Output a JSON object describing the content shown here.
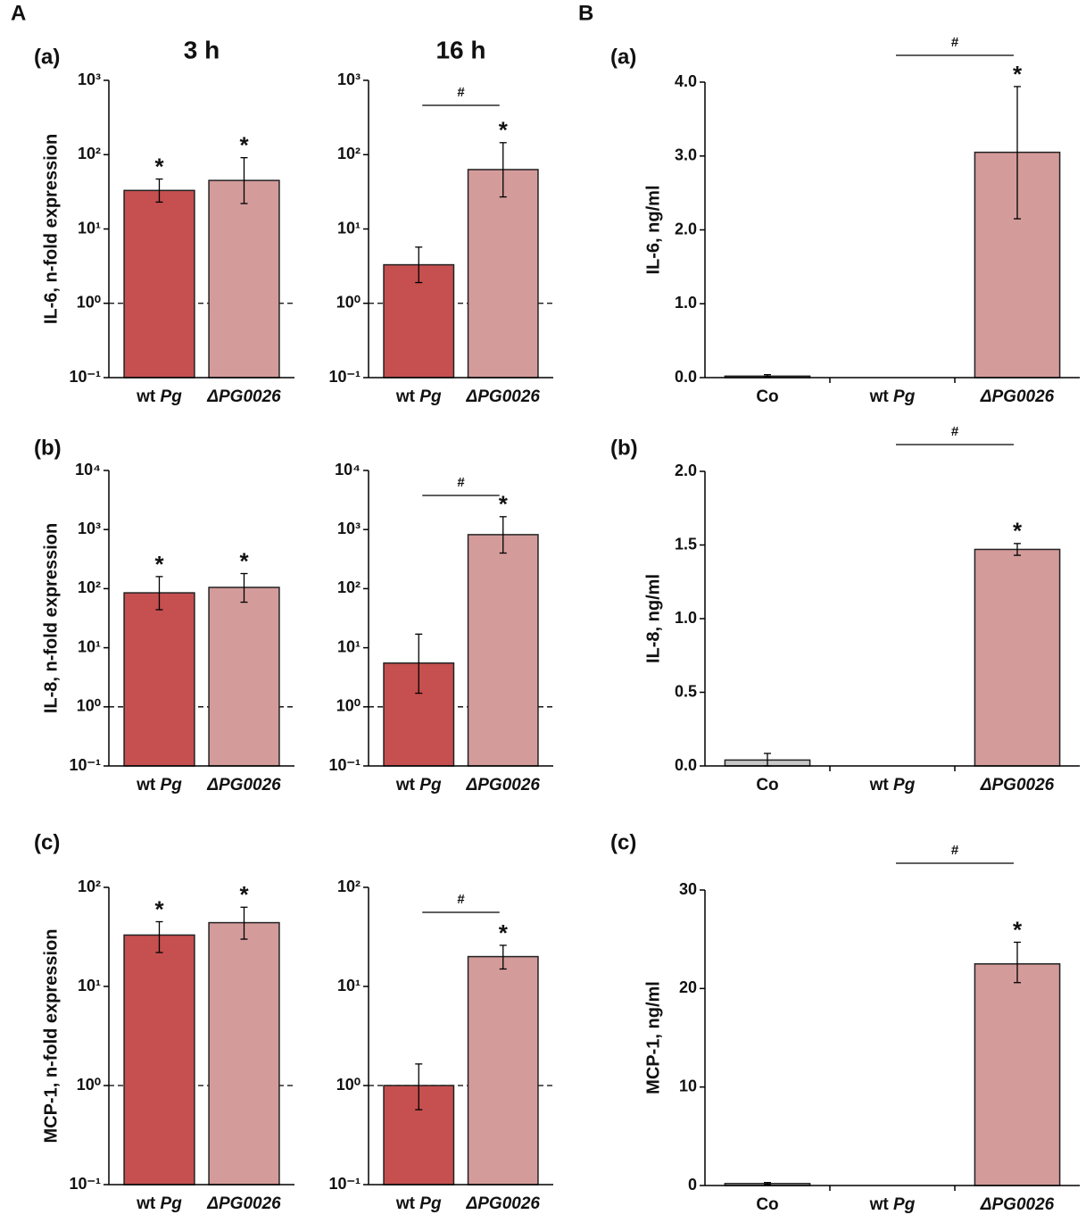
{
  "figure_labels": [
    "A",
    "B"
  ],
  "chart_data": [
    {
      "type": "bar",
      "panel": "(a)",
      "title": "3 h",
      "ylabel": "IL-6, n-fold expression",
      "log_scale": true,
      "categories": [
        "wt Pg",
        "ΔPG0026"
      ],
      "values": [
        33,
        45
      ],
      "error_bars": [
        [
          23,
          47
        ],
        [
          22,
          91
        ]
      ],
      "colors": [
        "#c5504f",
        "#d49b9b"
      ],
      "markers": [
        "*",
        "*"
      ],
      "reference_line": 1,
      "ylim": [
        0.1,
        1000
      ],
      "yticks": [
        {
          "value": 0.1,
          "label": "10⁻¹"
        },
        {
          "value": 1,
          "label": "10⁰"
        },
        {
          "value": 10,
          "label": "10¹"
        },
        {
          "value": 100,
          "label": "10²"
        },
        {
          "value": 1000,
          "label": "10³"
        }
      ]
    },
    {
      "type": "bar",
      "title": "16 h",
      "log_scale": true,
      "categories": [
        "wt Pg",
        "ΔPG0026"
      ],
      "values": [
        3.3,
        63
      ],
      "error_bars": [
        [
          1.9,
          5.7
        ],
        [
          27,
          145
        ]
      ],
      "colors": [
        "#c5504f",
        "#d49b9b"
      ],
      "markers": [
        null,
        "*"
      ],
      "bracket": {
        "label": "#",
        "categories": [
          0,
          1
        ]
      },
      "reference_line": 1,
      "ylim": [
        0.1,
        1000
      ],
      "yticks": [
        {
          "value": 0.1,
          "label": "10⁻¹"
        },
        {
          "value": 1,
          "label": "10⁰"
        },
        {
          "value": 10,
          "label": "10¹"
        },
        {
          "value": 100,
          "label": "10²"
        },
        {
          "value": 1000,
          "label": "10³"
        }
      ]
    },
    {
      "type": "bar",
      "panel": "(a)",
      "ylabel": "IL-6, ng/ml",
      "categories": [
        "Co",
        "wt Pg",
        "ΔPG0026"
      ],
      "values": [
        0.02,
        0,
        3.05
      ],
      "error_bars": [
        [
          0.01,
          0.04
        ],
        null,
        [
          2.15,
          3.94
        ]
      ],
      "colors": [
        "#c8c8c8",
        "#c8c8c8",
        "#d49b9b"
      ],
      "markers": [
        null,
        null,
        "*"
      ],
      "bracket": {
        "label": "#",
        "categories": [
          1,
          2
        ]
      },
      "ylim": [
        0,
        4
      ],
      "yticks": [
        {
          "value": 0,
          "label": "0.0"
        },
        {
          "value": 1,
          "label": "1.0"
        },
        {
          "value": 2,
          "label": "2.0"
        },
        {
          "value": 3,
          "label": "3.0"
        },
        {
          "value": 4,
          "label": "4.0"
        }
      ]
    },
    {
      "type": "bar",
      "panel": "(b)",
      "ylabel": "IL-8, n-fold expression",
      "log_scale": true,
      "categories": [
        "wt Pg",
        "ΔPG0026"
      ],
      "values": [
        85,
        105
      ],
      "error_bars": [
        [
          44,
          160
        ],
        [
          59,
          180
        ]
      ],
      "colors": [
        "#c5504f",
        "#d49b9b"
      ],
      "markers": [
        "*",
        "*"
      ],
      "reference_line": 1,
      "ylim": [
        0.1,
        10000
      ],
      "yticks": [
        {
          "value": 0.1,
          "label": "10⁻¹"
        },
        {
          "value": 1,
          "label": "10⁰"
        },
        {
          "value": 10,
          "label": "10¹"
        },
        {
          "value": 100,
          "label": "10²"
        },
        {
          "value": 1000,
          "label": "10³"
        },
        {
          "value": 10000,
          "label": "10⁴"
        }
      ]
    },
    {
      "type": "bar",
      "log_scale": true,
      "categories": [
        "wt Pg",
        "ΔPG0026"
      ],
      "values": [
        5.5,
        820
      ],
      "error_bars": [
        [
          1.7,
          17
        ],
        [
          400,
          1650
        ]
      ],
      "colors": [
        "#c5504f",
        "#d49b9b"
      ],
      "markers": [
        null,
        "*"
      ],
      "bracket": {
        "label": "#",
        "categories": [
          0,
          1
        ]
      },
      "reference_line": 1,
      "ylim": [
        0.1,
        10000
      ],
      "yticks": [
        {
          "value": 0.1,
          "label": "10⁻¹"
        },
        {
          "value": 1,
          "label": "10⁰"
        },
        {
          "value": 10,
          "label": "10¹"
        },
        {
          "value": 100,
          "label": "10²"
        },
        {
          "value": 1000,
          "label": "10³"
        },
        {
          "value": 10000,
          "label": "10⁴"
        }
      ]
    },
    {
      "type": "bar",
      "panel": "(b)",
      "ylabel": "IL-8, ng/ml",
      "categories": [
        "Co",
        "wt Pg",
        "ΔPG0026"
      ],
      "values": [
        0.04,
        0,
        1.47
      ],
      "error_bars": [
        [
          0.0,
          0.085
        ],
        null,
        [
          1.43,
          1.51
        ]
      ],
      "colors": [
        "#c8c8c8",
        "#c8c8c8",
        "#d49b9b"
      ],
      "markers": [
        null,
        null,
        "*"
      ],
      "bracket": {
        "label": "#",
        "categories": [
          1,
          2
        ]
      },
      "ylim": [
        0,
        2
      ],
      "yticks": [
        {
          "value": 0,
          "label": "0.0"
        },
        {
          "value": 0.5,
          "label": "0.5"
        },
        {
          "value": 1,
          "label": "1.0"
        },
        {
          "value": 1.5,
          "label": "1.5"
        },
        {
          "value": 2,
          "label": "2.0"
        }
      ]
    },
    {
      "type": "bar",
      "panel": "(c)",
      "ylabel": "MCP-1, n-fold expression",
      "log_scale": true,
      "categories": [
        "wt Pg",
        "ΔPG0026"
      ],
      "values": [
        33,
        44
      ],
      "error_bars": [
        [
          22,
          45
        ],
        [
          30,
          63
        ]
      ],
      "colors": [
        "#c5504f",
        "#d49b9b"
      ],
      "markers": [
        "*",
        "*"
      ],
      "reference_line": 1,
      "ylim": [
        0.1,
        100
      ],
      "yticks": [
        {
          "value": 0.1,
          "label": "10⁻¹"
        },
        {
          "value": 1,
          "label": "10⁰"
        },
        {
          "value": 10,
          "label": "10¹"
        },
        {
          "value": 100,
          "label": "10²"
        }
      ]
    },
    {
      "type": "bar",
      "log_scale": true,
      "categories": [
        "wt Pg",
        "ΔPG0026"
      ],
      "values": [
        1.0,
        20
      ],
      "error_bars": [
        [
          0.57,
          1.65
        ],
        [
          15,
          26
        ]
      ],
      "colors": [
        "#c5504f",
        "#d49b9b"
      ],
      "markers": [
        null,
        "*"
      ],
      "bracket": {
        "label": "#",
        "categories": [
          0,
          1
        ]
      },
      "reference_line": 1,
      "ylim": [
        0.1,
        100
      ],
      "yticks": [
        {
          "value": 0.1,
          "label": "10⁻¹"
        },
        {
          "value": 1,
          "label": "10⁰"
        },
        {
          "value": 10,
          "label": "10¹"
        },
        {
          "value": 100,
          "label": "10²"
        }
      ]
    },
    {
      "type": "bar",
      "panel": "(c)",
      "ylabel": "MCP-1, ng/ml",
      "categories": [
        "Co",
        "wt Pg",
        "ΔPG0026"
      ],
      "values": [
        0.2,
        0,
        22.5
      ],
      "error_bars": [
        [
          0.1,
          0.3
        ],
        null,
        [
          20.6,
          24.7
        ]
      ],
      "colors": [
        "#c8c8c8",
        "#c8c8c8",
        "#d49b9b"
      ],
      "markers": [
        null,
        null,
        "*"
      ],
      "bracket": {
        "label": "#",
        "categories": [
          1,
          2
        ]
      },
      "ylim": [
        0,
        30
      ],
      "yticks": [
        0,
        10,
        20,
        30
      ]
    }
  ]
}
